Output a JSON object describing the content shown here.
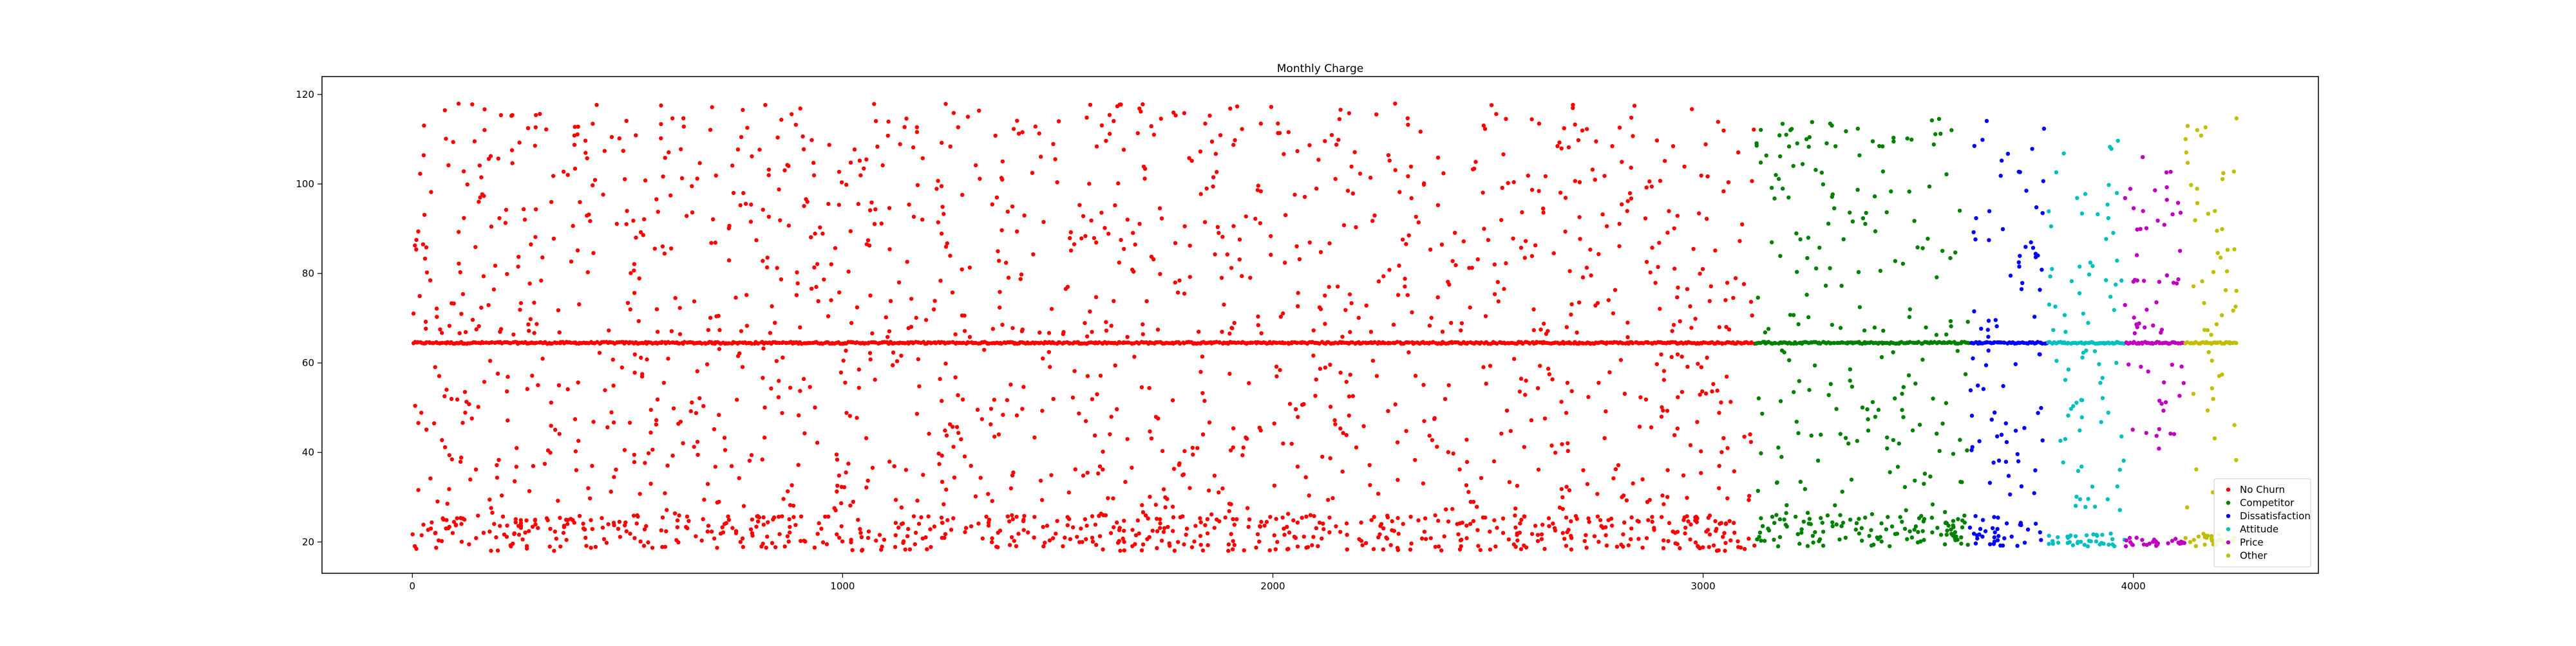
{
  "chart_data": {
    "type": "scatter",
    "title": "Monthly Charge",
    "xlabel": "",
    "ylabel": "",
    "xlim": [
      -210,
      4430
    ],
    "ylim": [
      13,
      124
    ],
    "x_ticks": [
      0,
      1000,
      2000,
      3000,
      4000
    ],
    "y_ticks": [
      20,
      40,
      60,
      80,
      100,
      120
    ],
    "grid": false,
    "legend_position": "lower-right",
    "series": [
      {
        "name": "No Churn",
        "color": "#ff0000",
        "x_range": [
          0,
          3120
        ],
        "low_band": [
          18,
          26
        ],
        "high_range": [
          25,
          118
        ],
        "baseline": 64.5
      },
      {
        "name": "Competitor",
        "color": "#008000",
        "x_range": [
          3120,
          3620
        ],
        "low_band": [
          19,
          26
        ],
        "high_range": [
          20,
          115
        ],
        "baseline": 64.5
      },
      {
        "name": "Dissatisfaction",
        "color": "#0000ff",
        "x_range": [
          3620,
          3800
        ],
        "low_band": [
          19,
          26
        ],
        "high_range": [
          30,
          115
        ],
        "baseline": 64.5
      },
      {
        "name": "Attitude",
        "color": "#00bfbf",
        "x_range": [
          3800,
          3980
        ],
        "low_band": [
          19,
          22
        ],
        "high_range": [
          25,
          111
        ],
        "baseline": 64.5
      },
      {
        "name": "Price",
        "color": "#bf00bf",
        "x_range": [
          3980,
          4120
        ],
        "low_band": [
          19,
          21
        ],
        "high_range": [
          40,
          106
        ],
        "baseline": 64.5
      },
      {
        "name": "Other",
        "color": "#bfbf00",
        "x_range": [
          4120,
          4240
        ],
        "low_band": [
          19,
          22
        ],
        "high_range": [
          25,
          116
        ],
        "baseline": 64.5
      }
    ]
  }
}
